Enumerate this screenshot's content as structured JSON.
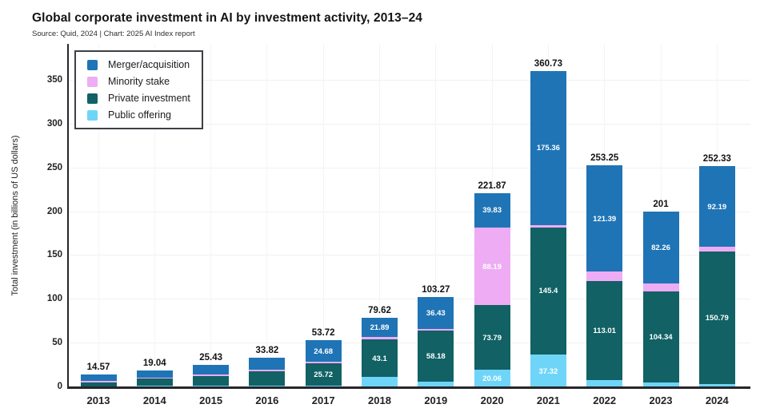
{
  "header": {
    "title": "Global corporate investment in AI by investment activity, 2013–24",
    "subtitle": "Source: Quid, 2024 | Chart: 2025 AI Index report"
  },
  "chart_data": {
    "type": "stacked-bar",
    "title": "Global corporate investment in AI by investment activity, 2013–24",
    "subtitle": "Source: Quid, 2024 | Chart: 2025 AI Index report",
    "xlabel": "",
    "ylabel": "Total investment (in billions of US dollars)",
    "categories": [
      "2013",
      "2014",
      "2015",
      "2016",
      "2017",
      "2018",
      "2019",
      "2020",
      "2021",
      "2022",
      "2023",
      "2024"
    ],
    "series": [
      {
        "name": "Merger/acquisition",
        "color": "#1f74b6",
        "values": [
          7.5,
          7.9,
          11.0,
          13.6,
          24.68,
          21.89,
          36.43,
          39.83,
          175.36,
          121.39,
          82.26,
          92.19
        ],
        "value_labels": [
          null,
          null,
          null,
          null,
          "24.68",
          "21.89",
          "36.43",
          "39.83",
          "175.36",
          "121.39",
          "82.26",
          "92.19"
        ]
      },
      {
        "name": "Minority stake",
        "color": "#eeacf4",
        "values": [
          1.5,
          0.6,
          1.5,
          1.6,
          1.9,
          2.9,
          2.3,
          88.19,
          2.65,
          10.31,
          9.0,
          5.3
        ],
        "value_labels": [
          null,
          null,
          null,
          null,
          null,
          null,
          null,
          "88.19",
          null,
          null,
          null,
          null
        ]
      },
      {
        "name": "Private investment",
        "color": "#116165",
        "values": [
          5.2,
          9.1,
          11.0,
          16.72,
          25.72,
          43.1,
          58.18,
          73.79,
          145.4,
          113.01,
          104.34,
          150.79
        ],
        "value_labels": [
          null,
          null,
          null,
          null,
          "25.72",
          "43.1",
          "58.18",
          "73.79",
          "145.4",
          "113.01",
          "104.34",
          "150.79"
        ]
      },
      {
        "name": "Public offering",
        "color": "#6fd5f8",
        "values": [
          0.37,
          1.44,
          1.93,
          1.9,
          1.42,
          11.73,
          6.36,
          20.06,
          37.32,
          8.54,
          5.4,
          4.05
        ],
        "value_labels": [
          null,
          null,
          null,
          null,
          null,
          null,
          null,
          "20.06",
          "37.32",
          null,
          null,
          null
        ]
      }
    ],
    "stack_bottom_to_top": [
      "Public offering",
      "Private investment",
      "Minority stake",
      "Merger/acquisition"
    ],
    "totals": [
      14.57,
      19.04,
      25.43,
      33.82,
      53.72,
      79.62,
      103.27,
      221.87,
      360.73,
      253.25,
      201,
      252.33
    ],
    "total_labels": [
      "14.57",
      "19.04",
      "25.43",
      "33.82",
      "53.72",
      "79.62",
      "103.27",
      "221.87",
      "360.73",
      "253.25",
      "201",
      "252.33"
    ],
    "y_ticks": [
      0,
      50,
      100,
      150,
      200,
      250,
      300,
      350
    ],
    "y_tick_labels": [
      "0",
      "50",
      "100",
      "150",
      "200",
      "250",
      "300",
      "350"
    ],
    "ylim": [
      0,
      392
    ],
    "grid": true,
    "legend_position": "top-left"
  }
}
